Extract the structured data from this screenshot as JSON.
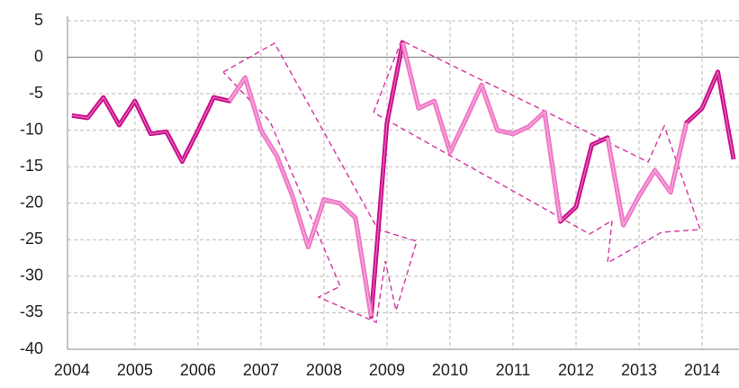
{
  "chart_data": {
    "type": "line",
    "x": [
      2004,
      2004.25,
      2004.5,
      2004.75,
      2005,
      2005.25,
      2005.5,
      2005.75,
      2006,
      2006.25,
      2006.5,
      2006.75,
      2007,
      2007.25,
      2007.5,
      2007.75,
      2008,
      2008.25,
      2008.5,
      2008.75,
      2009,
      2009.25,
      2009.5,
      2009.75,
      2010,
      2010.25,
      2010.5,
      2010.75,
      2011,
      2011.25,
      2011.5,
      2011.75,
      2012,
      2012.25,
      2012.5,
      2012.75,
      2013,
      2013.25,
      2013.5,
      2013.75,
      2014,
      2014.25,
      2014.5
    ],
    "series": [
      {
        "color": "#cc0f8c",
        "values": [
          -8,
          -8.3,
          -5.5,
          -9.3,
          -6,
          -10.5,
          -10.2,
          -14.3,
          -10,
          -5.5,
          -6,
          -2.8,
          -10,
          -13.5,
          -19,
          -26,
          -19.5,
          -20,
          -22,
          -35.5,
          -9,
          2,
          -7,
          -6,
          -13,
          -8.5,
          -3.8,
          -10,
          -10.5,
          -9.5,
          -7.5,
          -22.5,
          -20.5,
          -12,
          -11,
          -23,
          -19,
          -15.5,
          -18.5,
          -9,
          -7,
          -2,
          -14
        ]
      },
      {
        "color": "#f07ac8",
        "values": [
          null,
          null,
          null,
          null,
          null,
          null,
          null,
          null,
          null,
          null,
          -6,
          -2.8,
          -10,
          -13.5,
          -19,
          -26,
          -19.5,
          -20,
          -22,
          -35.5,
          null,
          2,
          -7,
          -6,
          -13,
          -8.5,
          -3.8,
          -10,
          -10.5,
          -9.5,
          -7.5,
          -22.5,
          null,
          null,
          -11,
          -23,
          -19,
          -15.5,
          -18.5,
          -9,
          null,
          null,
          null
        ]
      }
    ],
    "xlim": [
      2003.93,
      2014.6
    ],
    "ylim": [
      -40,
      5
    ],
    "xticks": [
      2004,
      2005,
      2006,
      2007,
      2008,
      2009,
      2010,
      2011,
      2012,
      2013,
      2014
    ],
    "yticks": [
      -40,
      -35,
      -30,
      -25,
      -20,
      -15,
      -10,
      -5,
      0,
      5
    ],
    "grid": true
  }
}
